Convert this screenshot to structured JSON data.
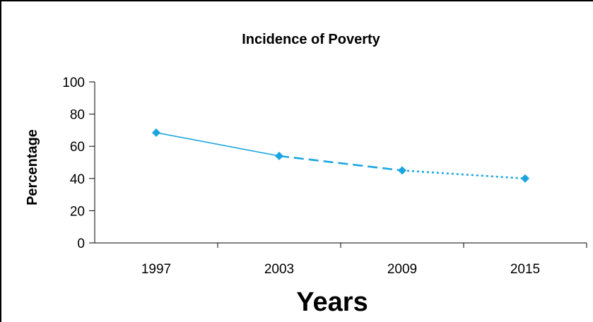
{
  "chart_data": {
    "type": "line",
    "title": "Incidence of Poverty",
    "xlabel": "Years",
    "ylabel": "Percentage",
    "categories": [
      "1997",
      "2003",
      "2009",
      "2015"
    ],
    "yticks": [
      "0",
      "20",
      "40",
      "60",
      "80",
      "100"
    ],
    "ylim": [
      0,
      100
    ],
    "grid": false,
    "series": [
      {
        "values": [
          68.5,
          54,
          45,
          40
        ],
        "color": "#1BA5E0",
        "segment_styles": [
          "solid",
          "dashed",
          "dotted"
        ],
        "marker": "diamond"
      }
    ]
  }
}
